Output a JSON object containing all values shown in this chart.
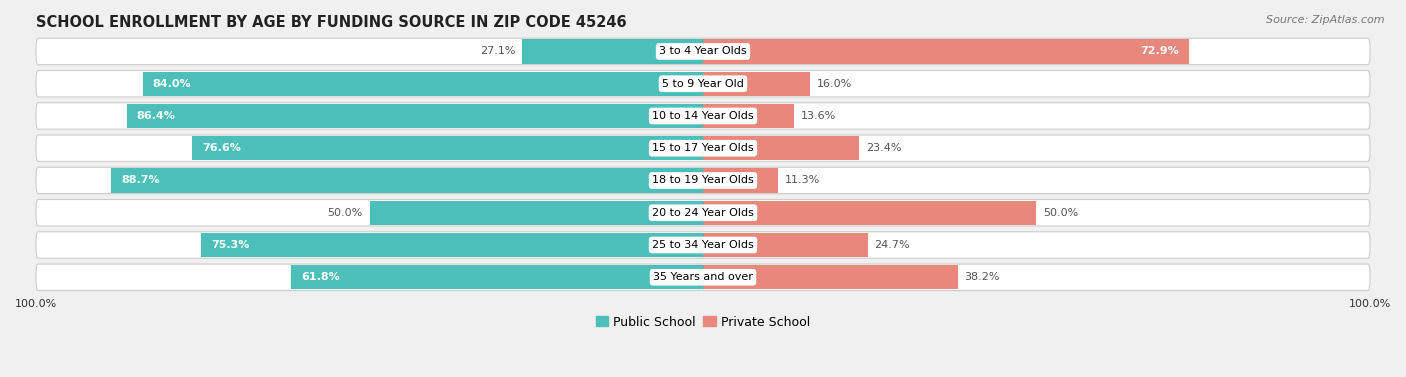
{
  "title": "SCHOOL ENROLLMENT BY AGE BY FUNDING SOURCE IN ZIP CODE 45246",
  "source": "Source: ZipAtlas.com",
  "categories": [
    "3 to 4 Year Olds",
    "5 to 9 Year Old",
    "10 to 14 Year Olds",
    "15 to 17 Year Olds",
    "18 to 19 Year Olds",
    "20 to 24 Year Olds",
    "25 to 34 Year Olds",
    "35 Years and over"
  ],
  "public_pct": [
    27.1,
    84.0,
    86.4,
    76.6,
    88.7,
    50.0,
    75.3,
    61.8
  ],
  "private_pct": [
    72.9,
    16.0,
    13.6,
    23.4,
    11.3,
    50.0,
    24.7,
    38.2
  ],
  "public_color": "#4DBFBB",
  "private_color": "#E8877B",
  "public_color_light": "#8ED8D5",
  "private_color_light": "#F0AFA8",
  "bg_color": "#F0F0F0",
  "row_bg_color": "#FFFFFF",
  "sep_color": "#CCCCCC",
  "title_fontsize": 10.5,
  "source_fontsize": 8,
  "label_fontsize": 8,
  "category_fontsize": 8,
  "legend_fontsize": 9,
  "axis_label_fontsize": 8
}
